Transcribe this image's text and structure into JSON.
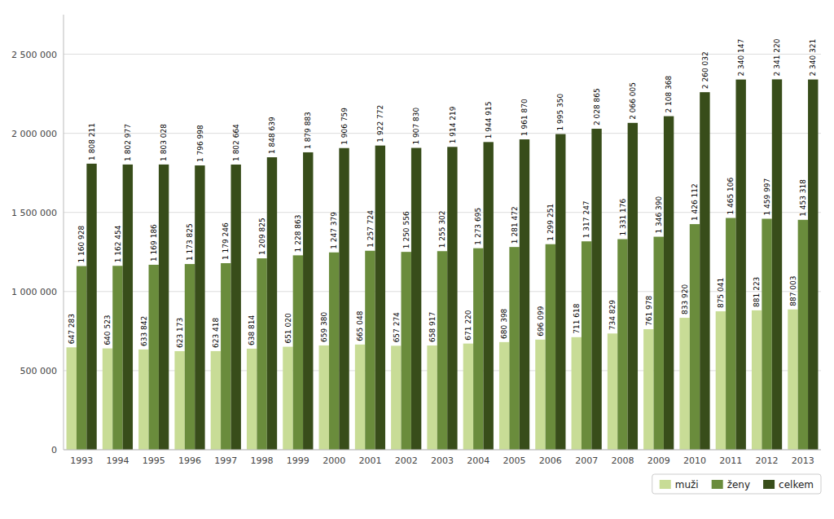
{
  "chart_data": {
    "type": "bar",
    "categories": [
      "1993",
      "1994",
      "1995",
      "1996",
      "1997",
      "1998",
      "1999",
      "2000",
      "2001",
      "2002",
      "2003",
      "2004",
      "2005",
      "2006",
      "2007",
      "2008",
      "2009",
      "2010",
      "2011",
      "2012",
      "2013"
    ],
    "series": [
      {
        "name": "muži",
        "color": "#c8dc96",
        "values": [
          647283,
          640523,
          633842,
          623173,
          623418,
          638814,
          651020,
          659380,
          665048,
          657274,
          658917,
          671220,
          680398,
          696099,
          711618,
          734829,
          761978,
          833920,
          875041,
          881223,
          887003
        ],
        "value_labels": [
          "647 283",
          "640 523",
          "633 842",
          "623 173",
          "623 418",
          "638 814",
          "651 020",
          "659 380",
          "665 048",
          "657 274",
          "658 917",
          "671 220",
          "680 398",
          "696 099",
          "711 618",
          "734 829",
          "761 978",
          "833 920",
          "875 041",
          "881 223",
          "887 003"
        ]
      },
      {
        "name": "ženy",
        "color": "#6a8c3c",
        "values": [
          1160928,
          1162454,
          1169186,
          1173825,
          1179246,
          1209825,
          1228863,
          1247379,
          1257724,
          1250556,
          1255302,
          1273695,
          1281472,
          1299251,
          1317247,
          1331176,
          1346390,
          1426112,
          1465106,
          1459997,
          1453318
        ],
        "value_labels": [
          "1 160 928",
          "1 162 454",
          "1 169 186",
          "1 173 825",
          "1 179 246",
          "1 209 825",
          "1 228 863",
          "1 247 379",
          "1 257 724",
          "1 250 556",
          "1 255 302",
          "1 273 695",
          "1 281 472",
          "1 299 251",
          "1 317 247",
          "1 331 176",
          "1 346 390",
          "1 426 112",
          "1 465 106",
          "1 459 997",
          "1 453 318"
        ]
      },
      {
        "name": "celkem",
        "color": "#384d1a",
        "values": [
          1808211,
          1802977,
          1803028,
          1796998,
          1802664,
          1848639,
          1879883,
          1906759,
          1922772,
          1907830,
          1914219,
          1944915,
          1961870,
          1995350,
          2028865,
          2066005,
          2108368,
          2260032,
          2340147,
          2341220,
          2340321
        ],
        "value_labels": [
          "1 808 211",
          "1 802 977",
          "1 803 028",
          "1 796 998",
          "1 802 664",
          "1 848 639",
          "1 879 883",
          "1 906 759",
          "1 922 772",
          "1 907 830",
          "1 914 219",
          "1 944 915",
          "1 961 870",
          "1 995 350",
          "2 028 865",
          "2 066 005",
          "2 108 368",
          "2 260 032",
          "2 340 147",
          "2 341 220",
          "2 340 321"
        ]
      }
    ],
    "ylim": [
      0,
      2750000
    ],
    "yticks": [
      0,
      {
        "value": 500000,
        "label": "500 000"
      },
      {
        "value": 1000000,
        "label": "1 000 000"
      },
      {
        "value": 1500000,
        "label": "1 500 000"
      },
      {
        "value": 2000000,
        "label": "2 000 000"
      },
      {
        "value": 2500000,
        "label": "2 500 000"
      }
    ],
    "grid": true,
    "legend": "lower right",
    "data_labels": true
  }
}
